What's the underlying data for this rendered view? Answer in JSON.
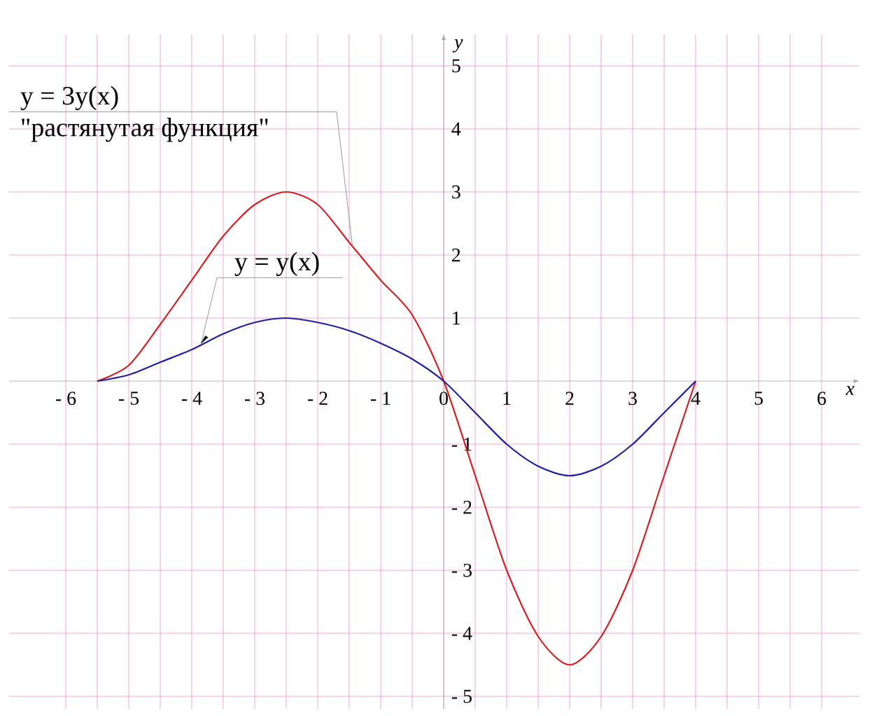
{
  "chart_data": {
    "type": "line",
    "xlabel": "x",
    "ylabel": "y",
    "x": [
      -5.5,
      -5,
      -4.5,
      -4,
      -3.5,
      -3,
      -2.5,
      -2,
      -1.5,
      -1,
      -0.5,
      0,
      0.5,
      1,
      1.5,
      2,
      2.5,
      3,
      3.5,
      4
    ],
    "series": [
      {
        "color": "#d42020",
        "values": [
          0,
          0.25,
          0.9,
          1.6,
          2.3,
          2.8,
          3,
          2.8,
          2.2,
          1.6,
          1.05,
          0,
          -1.5,
          -3,
          -4.05,
          -4.5,
          -4.05,
          -3,
          -1.5,
          0
        ]
      },
      {
        "color": "#2020a0",
        "values": [
          0,
          0.1,
          0.3,
          0.5,
          0.75,
          0.93,
          1,
          0.93,
          0.8,
          0.6,
          0.35,
          0,
          -0.5,
          -1,
          -1.35,
          -1.5,
          -1.35,
          -1,
          -0.5,
          0
        ]
      }
    ],
    "annotations": [
      {
        "text": "y = 3y(x)",
        "x": -1.45,
        "y": 2.15
      },
      "\"растянутая функция\"",
      {
        "text": "y = y(x)",
        "x": -3.85,
        "y": 0.6
      }
    ],
    "xlim": [
      -6.9,
      6.6
    ],
    "ylim": [
      -5.2,
      5.5
    ],
    "xticks": [
      {
        "value": -6,
        "label": "- 6"
      },
      {
        "value": -5,
        "label": "- 5"
      },
      {
        "value": -4,
        "label": "- 4"
      },
      {
        "value": -3,
        "label": "- 3"
      },
      {
        "value": -2,
        "label": "- 2"
      },
      {
        "value": -1,
        "label": "- 1"
      },
      0,
      1,
      2,
      3,
      4,
      5,
      6
    ],
    "yticks": [
      {
        "value": -5,
        "label": "- 5"
      },
      {
        "value": -4,
        "label": "- 4"
      },
      {
        "value": -3,
        "label": "- 3"
      },
      {
        "value": -2,
        "label": "- 2"
      },
      {
        "value": -1,
        "label": "- 1"
      },
      1,
      2,
      3,
      4,
      5
    ],
    "grid": true
  }
}
